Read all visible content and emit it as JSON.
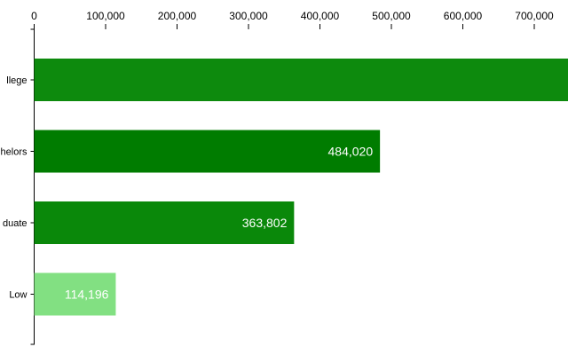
{
  "chart_data": {
    "type": "bar",
    "orientation": "horizontal",
    "categories": [
      "College",
      "Bachelors",
      "Graduate",
      "Low"
    ],
    "visible_category_labels": [
      "llege",
      "helors",
      "duate",
      "Low"
    ],
    "values": [
      760000,
      484020,
      363802,
      114196
    ],
    "value_labels": [
      "",
      "484,020",
      "363,802",
      "114,196"
    ],
    "bar_colors": [
      "#0d8a0d",
      "#007c00",
      "#0a880a",
      "#82e082"
    ],
    "xlim": [
      0,
      745000
    ],
    "x_ticks": [
      0,
      100000,
      200000,
      300000,
      400000,
      500000,
      600000,
      700000
    ],
    "x_tick_labels": [
      "0",
      "100,000",
      "200,000",
      "300,000",
      "400,000",
      "500,000",
      "600,000",
      "700,000"
    ],
    "x_axis_position": "top",
    "grid": false,
    "legend": "none",
    "title": "",
    "xlabel": "",
    "ylabel": ""
  }
}
